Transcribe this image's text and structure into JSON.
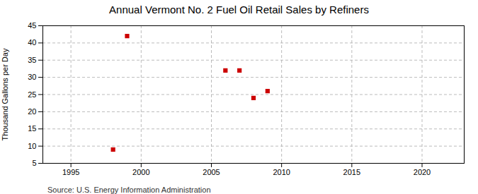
{
  "chart_data": {
    "type": "scatter",
    "title": "Annual Vermont No. 2 Fuel Oil Retail Sales by Refiners",
    "ylabel": "Thousand Gallons per Day",
    "source": "Source: U.S. Energy Information Administration",
    "x": [
      1998,
      1999,
      2006,
      2007,
      2008,
      2009
    ],
    "values": [
      9,
      42,
      32,
      32,
      24,
      26
    ],
    "color": "#cc0000",
    "marker": "square",
    "xlim": [
      1993,
      2023
    ],
    "ylim": [
      5,
      45
    ],
    "xticks": [
      1995,
      2000,
      2005,
      2010,
      2015,
      2020
    ],
    "yticks": [
      5,
      10,
      15,
      20,
      25,
      30,
      35,
      40,
      45
    ],
    "grid": true
  }
}
